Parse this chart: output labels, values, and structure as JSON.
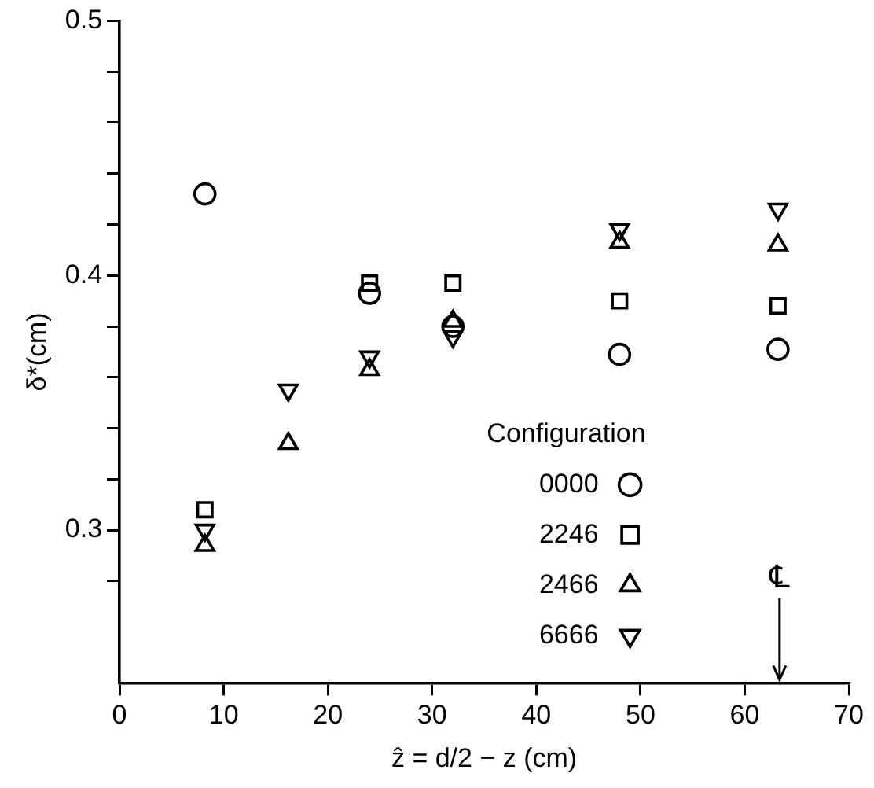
{
  "chart_data": {
    "type": "scatter",
    "xlabel": "ẑ = d/2 − z (cm)",
    "ylabel": "δ*(cm)",
    "legend_title": "Configuration",
    "legend": "bottom right",
    "grid": false,
    "xlim": [
      0,
      70
    ],
    "xticks": [
      0,
      10,
      20,
      30,
      40,
      50,
      60,
      70
    ],
    "ylim": [
      0.24,
      0.5
    ],
    "yticks": [
      {
        "value": 0.28,
        "label": null
      },
      0.3,
      {
        "value": 0.32,
        "label": null
      },
      {
        "value": 0.34,
        "label": null
      },
      {
        "value": 0.36,
        "label": null
      },
      {
        "value": 0.38,
        "label": null
      },
      0.4,
      {
        "value": 0.42,
        "label": null
      },
      {
        "value": 0.44,
        "label": null
      },
      {
        "value": 0.46,
        "label": null
      },
      {
        "value": 0.48,
        "label": null
      },
      0.5
    ],
    "annotations": [
      "℄"
    ],
    "series": [
      {
        "name": "0000",
        "color": "#000000",
        "marker": "circle",
        "x": [
          8.2,
          24,
          32,
          48,
          63.2
        ],
        "values": [
          0.432,
          0.393,
          0.38,
          0.369,
          0.371
        ]
      },
      {
        "name": "2246",
        "color": "#000000",
        "marker": "square",
        "x": [
          8.2,
          24,
          32,
          48,
          63.2
        ],
        "values": [
          0.308,
          0.397,
          0.397,
          0.39,
          0.388
        ]
      },
      {
        "name": "2466",
        "color": "#000000",
        "marker": "triangle",
        "x": [
          8.2,
          16.2,
          24,
          32,
          48,
          63.2
        ],
        "values": [
          0.294,
          0.334,
          0.363,
          0.382,
          0.413,
          0.412
        ]
      },
      {
        "name": "6666",
        "color": "#000000",
        "marker": "triangle-down",
        "x": [
          8.2,
          16.2,
          24,
          32,
          48,
          63.2
        ],
        "values": [
          0.3,
          0.355,
          0.368,
          0.376,
          0.418,
          0.426
        ]
      }
    ]
  }
}
